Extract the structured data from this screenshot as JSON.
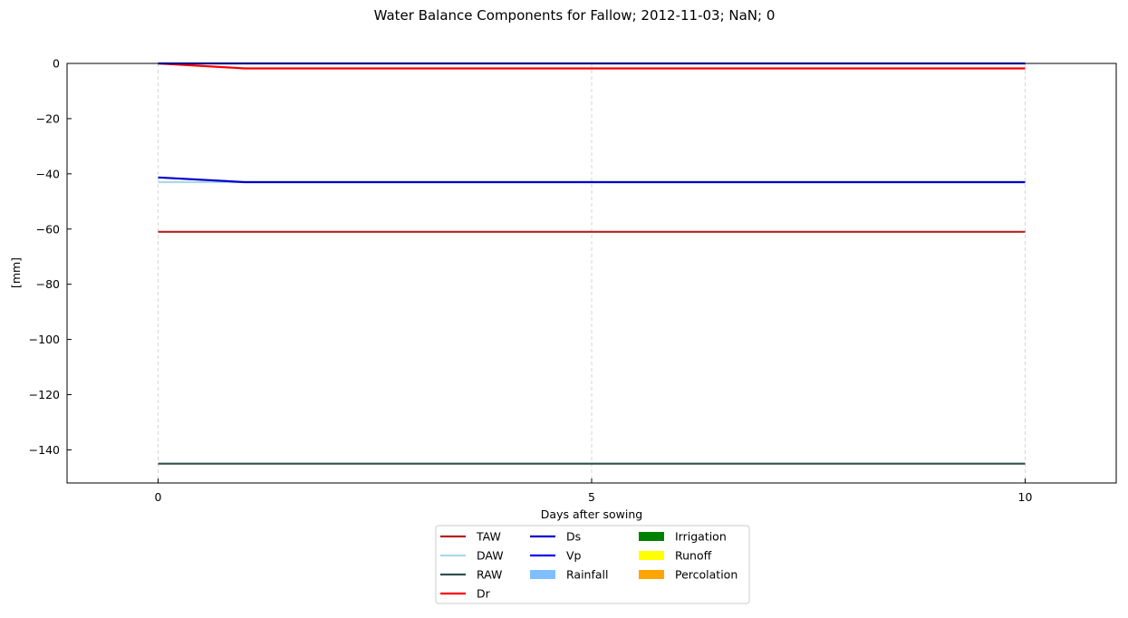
{
  "chart_data": {
    "type": "line",
    "title": "Water Balance Components for Fallow; 2012-11-03; NaN; 0",
    "xlabel": "Days after sowing",
    "ylabel": "[mm]",
    "xlim": [
      -1.05,
      11.05
    ],
    "ylim": [
      -152,
      0
    ],
    "xticks": [
      0,
      5,
      10
    ],
    "yticks": [
      0,
      -20,
      -40,
      -60,
      -80,
      -100,
      -120,
      -140
    ],
    "grid_x": true,
    "legend_position": "bottom-center",
    "series": [
      {
        "name": "TAW",
        "kind": "line",
        "color": "#b22222",
        "x": [
          0,
          1,
          2,
          3,
          4,
          5,
          6,
          7,
          8,
          9,
          10
        ],
        "y": [
          -61,
          -61,
          -61,
          -61,
          -61,
          -61,
          -61,
          -61,
          -61,
          -61,
          -61
        ]
      },
      {
        "name": "DAW",
        "kind": "line",
        "color": "#add8e6",
        "x": [
          0,
          1,
          2,
          3,
          4,
          5,
          6,
          7,
          8,
          9,
          10
        ],
        "y": [
          -43,
          -43,
          -43,
          -43,
          -43,
          -43,
          -43,
          -43,
          -43,
          -43,
          -43
        ]
      },
      {
        "name": "RAW",
        "kind": "line",
        "color": "#2f4f4f",
        "x": [
          0,
          1,
          2,
          3,
          4,
          5,
          6,
          7,
          8,
          9,
          10
        ],
        "y": [
          -145,
          -145,
          -145,
          -145,
          -145,
          -145,
          -145,
          -145,
          -145,
          -145,
          -145
        ]
      },
      {
        "name": "Dr",
        "kind": "line",
        "color": "#ff0000",
        "x": [
          0,
          1,
          2,
          3,
          4,
          5,
          6,
          7,
          8,
          9,
          10
        ],
        "y": [
          0,
          -1.8,
          -1.8,
          -1.8,
          -1.8,
          -1.8,
          -1.8,
          -1.8,
          -1.8,
          -1.8,
          -1.8
        ]
      },
      {
        "name": "Ds",
        "kind": "line",
        "color": "#0000cd",
        "x": [
          0,
          1,
          2,
          3,
          4,
          5,
          6,
          7,
          8,
          9,
          10
        ],
        "y": [
          -41.3,
          -43,
          -43,
          -43,
          -43,
          -43,
          -43,
          -43,
          -43,
          -43,
          -43
        ]
      },
      {
        "name": "Vp",
        "kind": "line",
        "color": "#0000ff",
        "x": [
          0,
          1,
          2,
          3,
          4,
          5,
          6,
          7,
          8,
          9,
          10
        ],
        "y": [
          0,
          0,
          0,
          0,
          0,
          0,
          0,
          0,
          0,
          0,
          0
        ]
      },
      {
        "name": "Rainfall",
        "kind": "bar",
        "color": "#7fbfff",
        "x": [
          0,
          1,
          2,
          3,
          4,
          5,
          6,
          7,
          8,
          9,
          10
        ],
        "y": [
          0,
          0,
          0,
          0,
          0,
          0,
          0,
          0,
          0,
          0,
          0
        ]
      },
      {
        "name": "Irrigation",
        "kind": "bar",
        "color": "#008000",
        "x": [
          0,
          1,
          2,
          3,
          4,
          5,
          6,
          7,
          8,
          9,
          10
        ],
        "y": [
          0,
          0,
          0,
          0,
          0,
          0,
          0,
          0,
          0,
          0,
          0
        ]
      },
      {
        "name": "Runoff",
        "kind": "bar",
        "color": "#ffff00",
        "x": [
          0,
          1,
          2,
          3,
          4,
          5,
          6,
          7,
          8,
          9,
          10
        ],
        "y": [
          0,
          0,
          0,
          0,
          0,
          0,
          0,
          0,
          0,
          0,
          0
        ]
      },
      {
        "name": "Percolation",
        "kind": "bar",
        "color": "#ffa500",
        "x": [
          0,
          1,
          2,
          3,
          4,
          5,
          6,
          7,
          8,
          9,
          10
        ],
        "y": [
          0,
          0,
          0,
          0,
          0,
          0,
          0,
          0,
          0,
          0,
          0
        ]
      }
    ]
  }
}
